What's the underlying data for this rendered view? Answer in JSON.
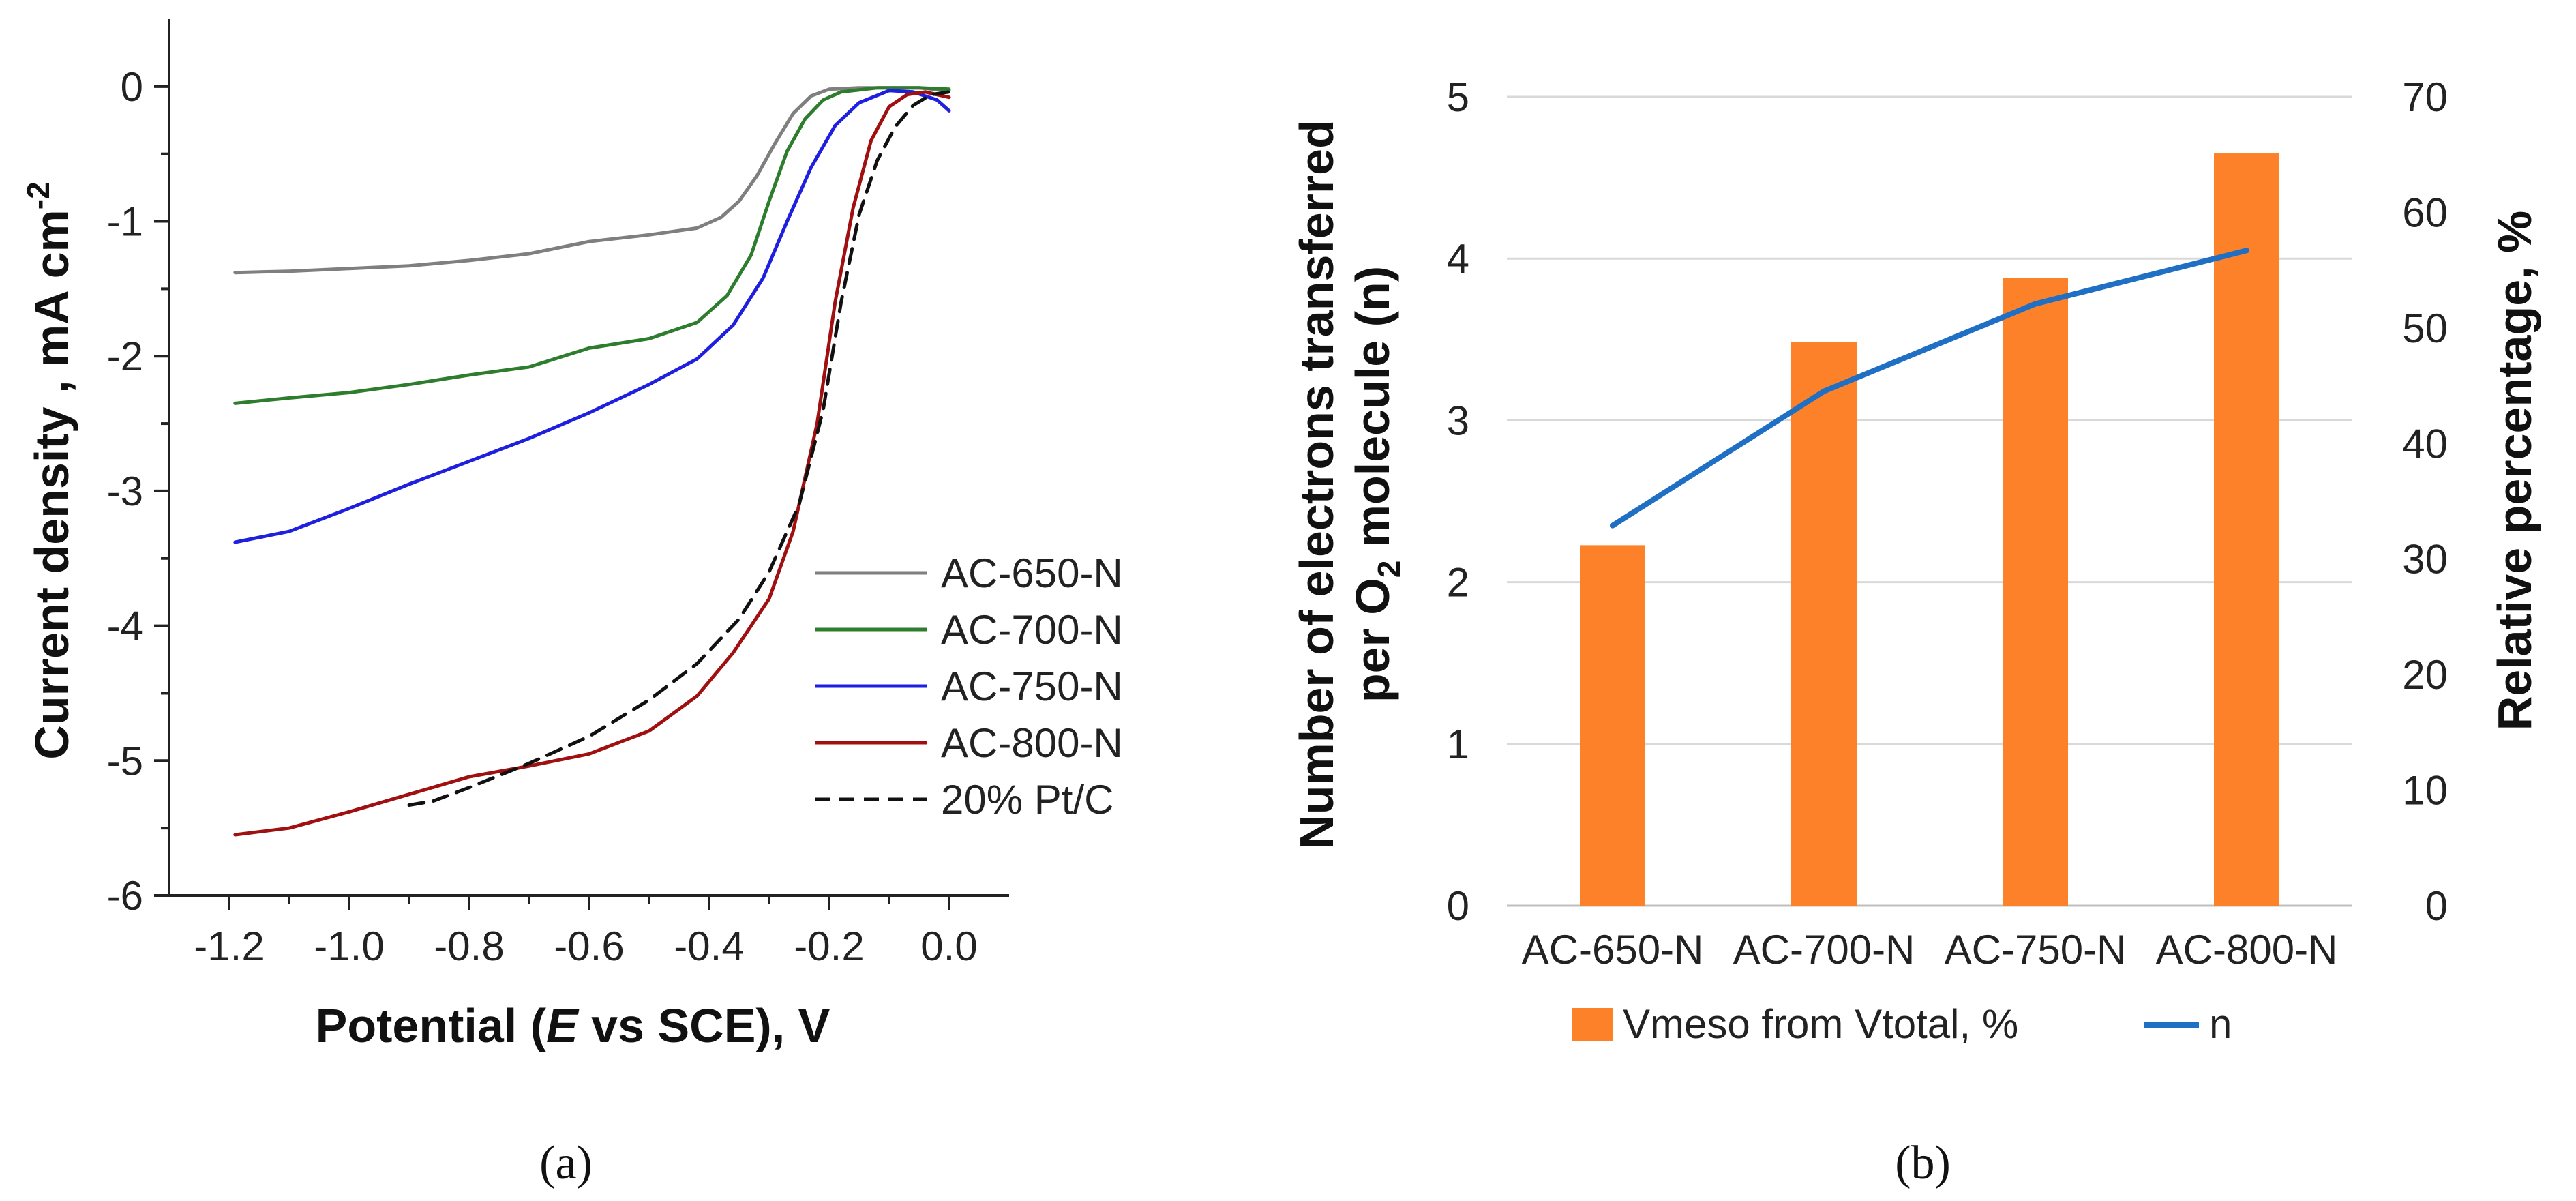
{
  "chart_data": [
    {
      "type": "line",
      "panel_label": "(a)",
      "xlabel_parts": [
        "Potential (",
        "E",
        " vs SCE), V"
      ],
      "ylabel": "Current density , mA cm",
      "ylabel_sup": "-2",
      "xlim": [
        -1.3,
        0.1
      ],
      "ylim": [
        -6,
        0.5
      ],
      "x_ticks": [
        -1.2,
        -1.0,
        -0.8,
        -0.6,
        -0.4,
        -0.2,
        0.0
      ],
      "x_tick_labels": [
        "-1.2",
        "-1.0",
        "-0.8",
        "-0.6",
        "-0.4",
        "-0.2",
        "0.0"
      ],
      "y_ticks": [
        0,
        -1,
        -2,
        -3,
        -4,
        -5,
        -6
      ],
      "y_tick_labels": [
        "0",
        "-1",
        "-2",
        "-3",
        "-4",
        "-5",
        "-6"
      ],
      "legend_position": "center-right",
      "series": [
        {
          "name": "AC-650-N",
          "color": "#7f7f7f",
          "dash": "solid",
          "points": [
            [
              -1.19,
              -1.38
            ],
            [
              -1.1,
              -1.37
            ],
            [
              -1.0,
              -1.35
            ],
            [
              -0.9,
              -1.33
            ],
            [
              -0.8,
              -1.29
            ],
            [
              -0.7,
              -1.24
            ],
            [
              -0.6,
              -1.15
            ],
            [
              -0.5,
              -1.1
            ],
            [
              -0.42,
              -1.05
            ],
            [
              -0.38,
              -0.97
            ],
            [
              -0.35,
              -0.85
            ],
            [
              -0.32,
              -0.66
            ],
            [
              -0.29,
              -0.42
            ],
            [
              -0.26,
              -0.2
            ],
            [
              -0.23,
              -0.07
            ],
            [
              -0.2,
              -0.02
            ],
            [
              -0.15,
              -0.01
            ],
            [
              -0.05,
              -0.01
            ],
            [
              0.0,
              -0.03
            ]
          ]
        },
        {
          "name": "AC-700-N",
          "color": "#2e7d2e",
          "dash": "solid",
          "points": [
            [
              -1.19,
              -2.35
            ],
            [
              -1.1,
              -2.31
            ],
            [
              -1.0,
              -2.27
            ],
            [
              -0.9,
              -2.21
            ],
            [
              -0.8,
              -2.14
            ],
            [
              -0.7,
              -2.08
            ],
            [
              -0.6,
              -1.94
            ],
            [
              -0.5,
              -1.87
            ],
            [
              -0.42,
              -1.75
            ],
            [
              -0.37,
              -1.55
            ],
            [
              -0.33,
              -1.25
            ],
            [
              -0.3,
              -0.85
            ],
            [
              -0.27,
              -0.48
            ],
            [
              -0.24,
              -0.24
            ],
            [
              -0.21,
              -0.1
            ],
            [
              -0.18,
              -0.04
            ],
            [
              -0.12,
              -0.01
            ],
            [
              -0.05,
              -0.01
            ],
            [
              0.0,
              -0.02
            ]
          ]
        },
        {
          "name": "AC-750-N",
          "color": "#1f1fe0",
          "dash": "solid",
          "points": [
            [
              -1.19,
              -3.38
            ],
            [
              -1.1,
              -3.3
            ],
            [
              -1.0,
              -3.13
            ],
            [
              -0.9,
              -2.95
            ],
            [
              -0.8,
              -2.78
            ],
            [
              -0.7,
              -2.61
            ],
            [
              -0.6,
              -2.42
            ],
            [
              -0.5,
              -2.21
            ],
            [
              -0.42,
              -2.02
            ],
            [
              -0.36,
              -1.77
            ],
            [
              -0.31,
              -1.42
            ],
            [
              -0.27,
              -1.0
            ],
            [
              -0.23,
              -0.6
            ],
            [
              -0.19,
              -0.29
            ],
            [
              -0.15,
              -0.12
            ],
            [
              -0.1,
              -0.03
            ],
            [
              -0.06,
              -0.04
            ],
            [
              -0.02,
              -0.1
            ],
            [
              0.0,
              -0.18
            ]
          ]
        },
        {
          "name": "AC-800-N",
          "color": "#a01010",
          "dash": "solid",
          "points": [
            [
              -1.19,
              -5.55
            ],
            [
              -1.1,
              -5.5
            ],
            [
              -1.0,
              -5.38
            ],
            [
              -0.9,
              -5.25
            ],
            [
              -0.8,
              -5.12
            ],
            [
              -0.7,
              -5.04
            ],
            [
              -0.6,
              -4.95
            ],
            [
              -0.5,
              -4.78
            ],
            [
              -0.42,
              -4.52
            ],
            [
              -0.36,
              -4.2
            ],
            [
              -0.3,
              -3.8
            ],
            [
              -0.26,
              -3.3
            ],
            [
              -0.22,
              -2.5
            ],
            [
              -0.19,
              -1.6
            ],
            [
              -0.16,
              -0.9
            ],
            [
              -0.13,
              -0.4
            ],
            [
              -0.1,
              -0.15
            ],
            [
              -0.07,
              -0.06
            ],
            [
              -0.04,
              -0.04
            ],
            [
              0.0,
              -0.08
            ]
          ]
        },
        {
          "name": "20% Pt/C",
          "color": "#111111",
          "dash": "dashed",
          "points": [
            [
              -0.9,
              -5.33
            ],
            [
              -0.86,
              -5.3
            ],
            [
              -0.8,
              -5.2
            ],
            [
              -0.7,
              -5.02
            ],
            [
              -0.6,
              -4.82
            ],
            [
              -0.5,
              -4.55
            ],
            [
              -0.42,
              -4.28
            ],
            [
              -0.35,
              -3.95
            ],
            [
              -0.3,
              -3.6
            ],
            [
              -0.25,
              -3.1
            ],
            [
              -0.21,
              -2.4
            ],
            [
              -0.18,
              -1.6
            ],
            [
              -0.15,
              -0.95
            ],
            [
              -0.12,
              -0.55
            ],
            [
              -0.09,
              -0.3
            ],
            [
              -0.06,
              -0.14
            ],
            [
              -0.03,
              -0.06
            ],
            [
              0.0,
              -0.04
            ]
          ]
        }
      ]
    },
    {
      "type": "bar",
      "panel_label": "(b)",
      "categories": [
        "AC-650-N",
        "AC-700-N",
        "AC-750-N",
        "AC-800-N"
      ],
      "ylabel_line1": "Number of electrons transferred",
      "ylabel_line2_pre": "per O",
      "ylabel_line2_sub": "2",
      "ylabel_line2_post": " molecule (n)",
      "y2label": "Relative percentage, %",
      "ylim": [
        0,
        5
      ],
      "y_ticks": [
        0,
        1,
        2,
        3,
        4,
        5
      ],
      "y_tick_labels": [
        "0",
        "1",
        "2",
        "3",
        "4",
        "5"
      ],
      "y2lim": [
        0,
        70
      ],
      "y2_ticks": [
        0,
        10,
        20,
        30,
        40,
        50,
        60,
        70
      ],
      "y2_tick_labels": [
        "0",
        "10",
        "20",
        "30",
        "40",
        "50",
        "60",
        "70"
      ],
      "grid": true,
      "legend_position": "bottom",
      "series": [
        {
          "name": "Vmeso from Vtotal, %",
          "kind": "bar",
          "axis": "right",
          "color": "#fd8128",
          "values": [
            31.2,
            48.8,
            54.3,
            65.1
          ]
        },
        {
          "name": "n",
          "kind": "line",
          "axis": "left",
          "color": "#1f6fc5",
          "values": [
            2.35,
            3.18,
            3.72,
            4.05
          ]
        }
      ]
    }
  ]
}
